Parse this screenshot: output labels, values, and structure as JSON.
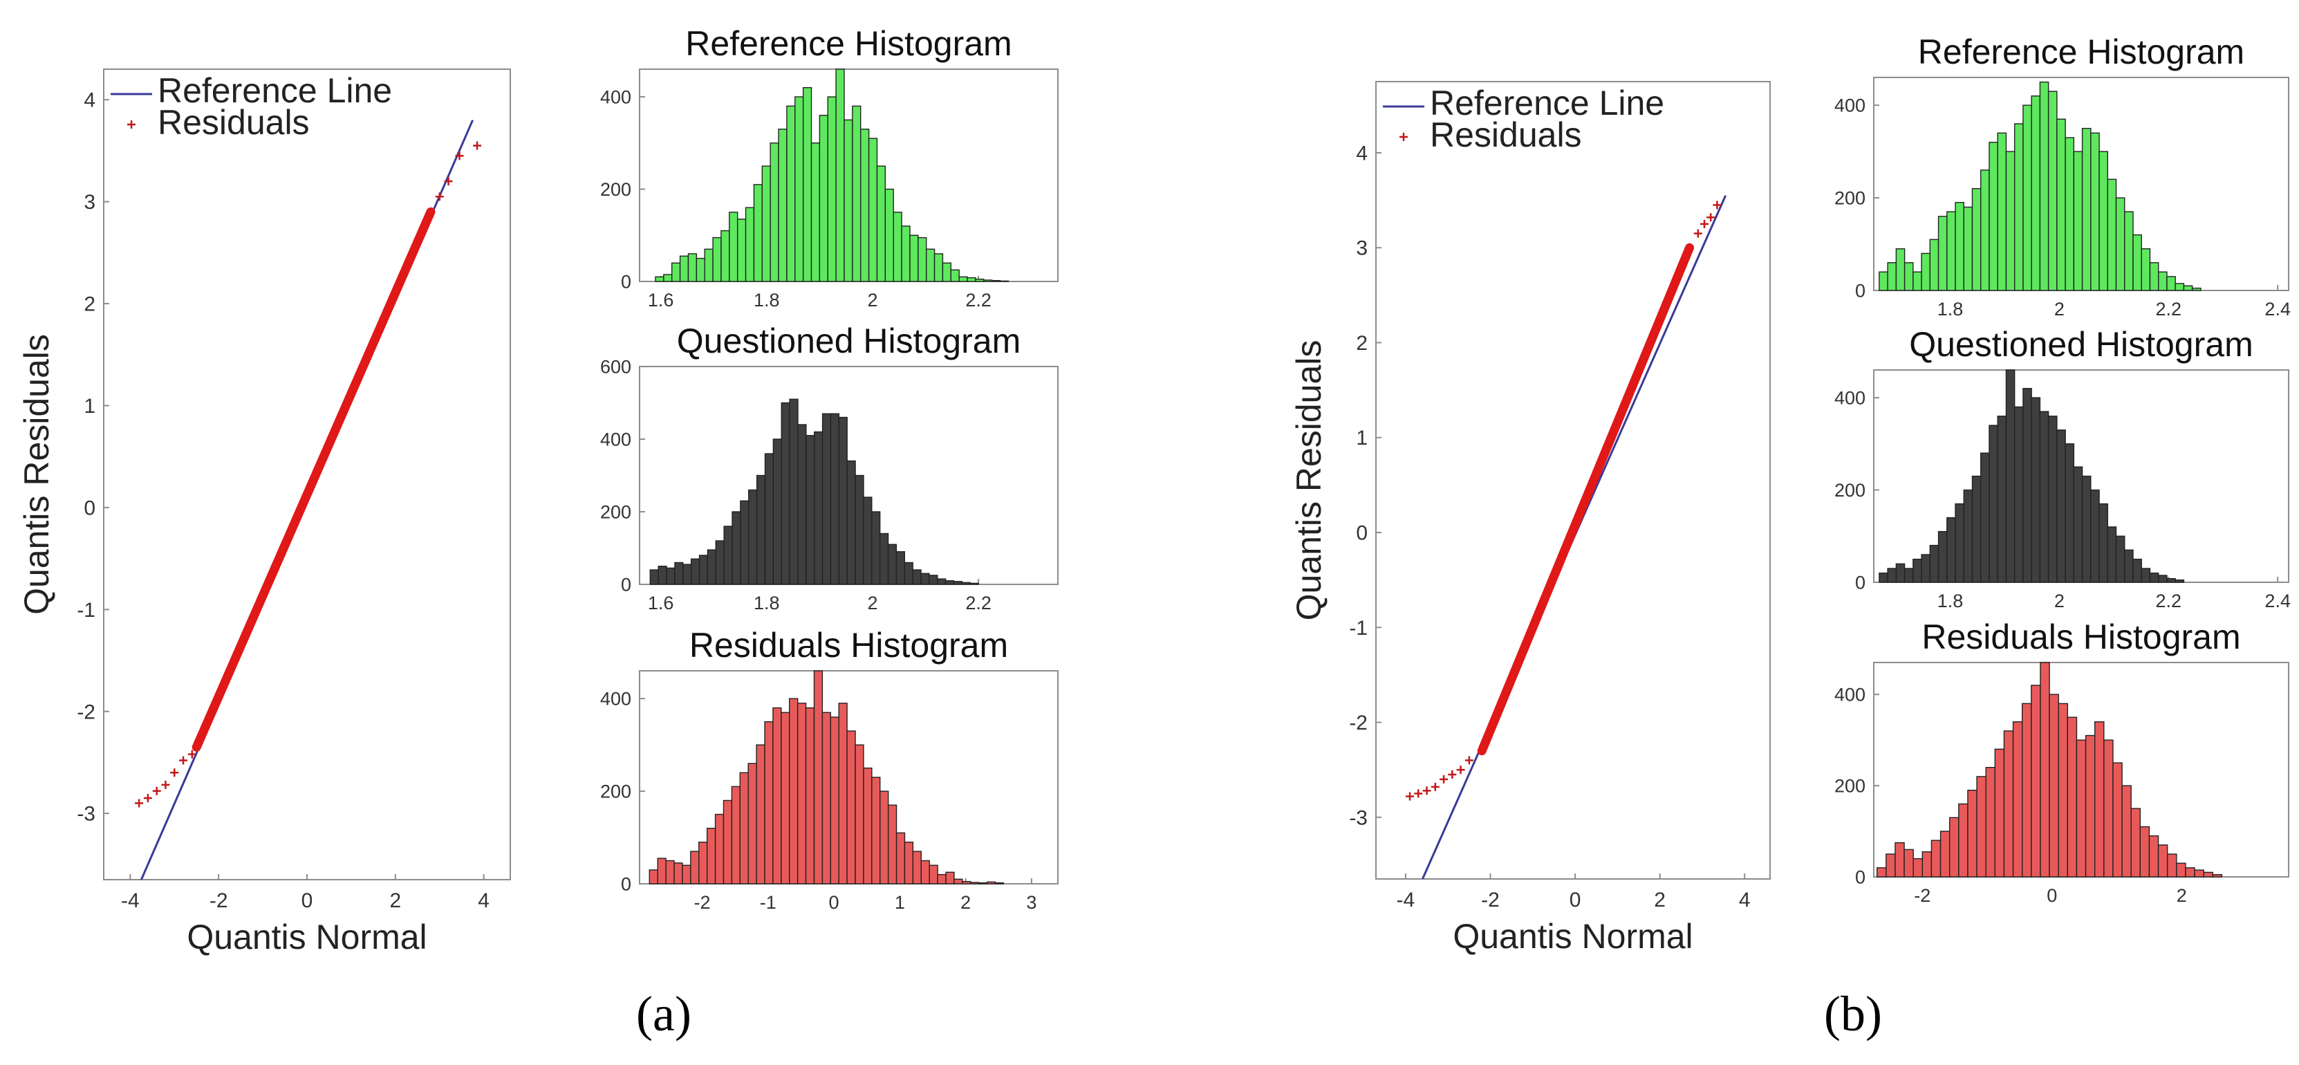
{
  "figure": {
    "panel_a_label": "(a)",
    "panel_b_label": "(b)"
  },
  "chart_data": [
    {
      "id": "a-qq",
      "type": "scatter",
      "xlabel": "Quantis Normal",
      "ylabel": "Quantis Residuals",
      "xlim": [
        -4.6,
        4.6
      ],
      "ylim": [
        -3.65,
        4.3
      ],
      "xticks": [
        -4,
        -2,
        0,
        2,
        4
      ],
      "yticks": [
        -3,
        -2,
        -1,
        0,
        1,
        2,
        3,
        4
      ],
      "legend": {
        "position": "top-left",
        "entries": [
          "Reference Line",
          "Residuals"
        ]
      },
      "reference_line": {
        "from": [
          -3.75,
          -3.65
        ],
        "to": [
          3.75,
          3.8
        ]
      },
      "residuals": {
        "body_from": [
          -2.5,
          -2.35
        ],
        "body_to": [
          2.8,
          2.9
        ],
        "tail_points": [
          [
            -3.8,
            -2.9
          ],
          [
            -3.6,
            -2.85
          ],
          [
            -3.4,
            -2.78
          ],
          [
            -3.2,
            -2.72
          ],
          [
            -3.0,
            -2.6
          ],
          [
            -2.8,
            -2.48
          ],
          [
            -2.6,
            -2.42
          ],
          [
            3.0,
            3.05
          ],
          [
            3.2,
            3.2
          ],
          [
            3.45,
            3.45
          ],
          [
            3.85,
            3.55
          ]
        ]
      }
    },
    {
      "id": "a-ref",
      "type": "bar",
      "title": "Reference Histogram",
      "color": "#5ee85e",
      "xlim": [
        1.56,
        2.35
      ],
      "ylim": [
        0,
        460
      ],
      "xticks": [
        1.6,
        1.8,
        2,
        2.2
      ],
      "yticks": [
        0,
        200,
        400
      ],
      "bin_start": 1.59,
      "bin_width": 0.0155,
      "values": [
        10,
        15,
        40,
        55,
        60,
        50,
        70,
        95,
        110,
        150,
        135,
        160,
        210,
        250,
        300,
        330,
        380,
        400,
        420,
        300,
        360,
        400,
        470,
        350,
        380,
        330,
        310,
        250,
        200,
        150,
        120,
        100,
        95,
        70,
        60,
        40,
        25,
        10,
        8,
        5,
        3,
        2,
        1
      ]
    },
    {
      "id": "a-que",
      "type": "bar",
      "title": "Questioned Histogram",
      "color": "#3f3f3f",
      "xlim": [
        1.56,
        2.35
      ],
      "ylim": [
        0,
        600
      ],
      "xticks": [
        1.6,
        1.8,
        2,
        2.2
      ],
      "yticks": [
        0,
        200,
        400,
        600
      ],
      "bin_start": 1.58,
      "bin_width": 0.0155,
      "values": [
        40,
        50,
        45,
        60,
        55,
        70,
        80,
        95,
        120,
        160,
        200,
        230,
        260,
        300,
        360,
        400,
        500,
        510,
        440,
        410,
        420,
        470,
        470,
        460,
        340,
        300,
        240,
        200,
        140,
        110,
        90,
        60,
        40,
        30,
        25,
        15,
        10,
        8,
        5,
        3
      ]
    },
    {
      "id": "a-res",
      "type": "bar",
      "title": "Residuals Histogram",
      "color": "#e85a5a",
      "xlim": [
        -2.95,
        3.4
      ],
      "ylim": [
        0,
        460
      ],
      "xticks": [
        -2,
        -1,
        0,
        1,
        2,
        3
      ],
      "yticks": [
        0,
        200,
        400
      ],
      "bin_start": -2.8,
      "bin_width": 0.125,
      "values": [
        30,
        55,
        50,
        45,
        40,
        70,
        90,
        120,
        150,
        180,
        210,
        240,
        260,
        300,
        350,
        380,
        370,
        400,
        390,
        380,
        470,
        370,
        360,
        390,
        330,
        300,
        250,
        230,
        200,
        170,
        110,
        90,
        70,
        50,
        40,
        20,
        25,
        10,
        5,
        3,
        2,
        4,
        2
      ]
    },
    {
      "id": "b-qq",
      "type": "scatter",
      "xlabel": "Quantis Normal",
      "ylabel": "Quantis Residuals",
      "xlim": [
        -4.7,
        4.6
      ],
      "ylim": [
        -3.65,
        4.75
      ],
      "xticks": [
        -4,
        -2,
        0,
        2,
        4
      ],
      "yticks": [
        -3,
        -2,
        -1,
        0,
        1,
        2,
        3,
        4
      ],
      "legend": {
        "position": "top-left",
        "entries": [
          "Reference Line",
          "Residuals"
        ]
      },
      "reference_line": {
        "from": [
          -3.6,
          -3.65
        ],
        "to": [
          3.55,
          3.55
        ]
      },
      "residuals": {
        "body_from": [
          -2.2,
          -2.3
        ],
        "body_to": [
          2.7,
          3.0
        ],
        "tail_points": [
          [
            -3.9,
            -2.78
          ],
          [
            -3.7,
            -2.75
          ],
          [
            -3.5,
            -2.72
          ],
          [
            -3.3,
            -2.68
          ],
          [
            -3.1,
            -2.6
          ],
          [
            -2.9,
            -2.55
          ],
          [
            -2.7,
            -2.5
          ],
          [
            -2.5,
            -2.4
          ],
          [
            2.9,
            3.15
          ],
          [
            3.05,
            3.25
          ],
          [
            3.2,
            3.32
          ],
          [
            3.35,
            3.45
          ]
        ]
      }
    },
    {
      "id": "b-ref",
      "type": "bar",
      "title": "Reference Histogram",
      "color": "#5ee85e",
      "xlim": [
        1.66,
        2.42
      ],
      "ylim": [
        0,
        460
      ],
      "xticks": [
        1.8,
        2,
        2.2,
        2.4
      ],
      "yticks": [
        0,
        200,
        400
      ],
      "bin_start": 1.67,
      "bin_width": 0.0155,
      "values": [
        40,
        60,
        90,
        60,
        40,
        80,
        110,
        160,
        170,
        190,
        180,
        220,
        260,
        320,
        340,
        300,
        360,
        400,
        420,
        450,
        430,
        370,
        330,
        300,
        350,
        340,
        300,
        240,
        200,
        170,
        120,
        90,
        60,
        40,
        30,
        15,
        10,
        5
      ]
    },
    {
      "id": "b-que",
      "type": "bar",
      "title": "Questioned Histogram",
      "color": "#3f3f3f",
      "xlim": [
        1.66,
        2.42
      ],
      "ylim": [
        0,
        460
      ],
      "xticks": [
        1.8,
        2,
        2.2,
        2.4
      ],
      "yticks": [
        0,
        200,
        400
      ],
      "bin_start": 1.67,
      "bin_width": 0.0155,
      "values": [
        20,
        30,
        40,
        30,
        50,
        60,
        80,
        110,
        140,
        170,
        200,
        230,
        280,
        340,
        360,
        460,
        380,
        420,
        400,
        370,
        360,
        330,
        300,
        250,
        230,
        200,
        170,
        120,
        100,
        70,
        50,
        30,
        20,
        15,
        8,
        5
      ]
    },
    {
      "id": "b-res",
      "type": "bar",
      "title": "Residuals Histogram",
      "color": "#e85a5a",
      "xlim": [
        -2.75,
        3.65
      ],
      "ylim": [
        0,
        470
      ],
      "xticks": [
        -2,
        0,
        2
      ],
      "yticks": [
        0,
        200,
        400
      ],
      "bin_start": -2.7,
      "bin_width": 0.14,
      "values": [
        20,
        50,
        75,
        60,
        40,
        55,
        80,
        100,
        130,
        160,
        190,
        220,
        240,
        280,
        320,
        340,
        380,
        420,
        470,
        400,
        380,
        350,
        300,
        310,
        340,
        300,
        250,
        200,
        150,
        110,
        90,
        70,
        50,
        30,
        20,
        15,
        10,
        5
      ]
    }
  ]
}
